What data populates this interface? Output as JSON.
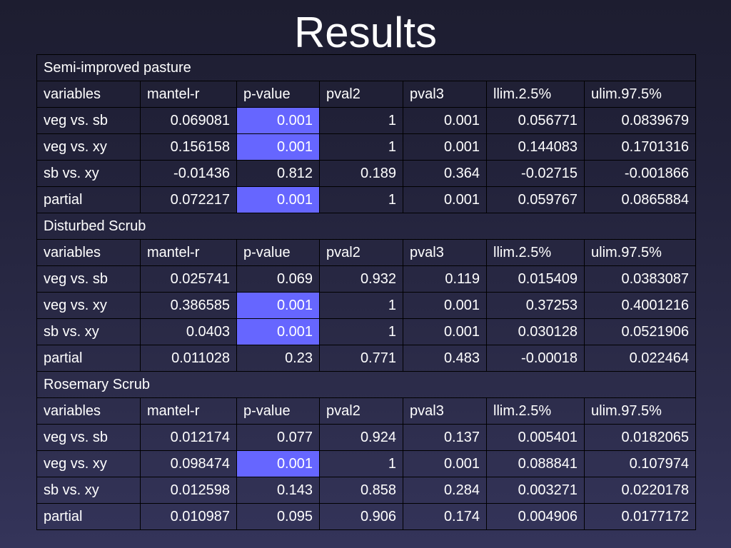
{
  "title": "Results",
  "columns": [
    "variables",
    "mantel-r",
    "p-value",
    "pval2",
    "pval3",
    "llim.2.5%",
    "ulim.97.5%"
  ],
  "colors": {
    "significant_highlight": "#6666ff",
    "background": "#22223a",
    "text": "#ffffff"
  },
  "sections": [
    {
      "name": "Semi-improved pasture",
      "rows": [
        {
          "cells": [
            "veg vs. sb",
            "0.069081",
            "0.001",
            "1",
            "0.001",
            "0.056771",
            "0.0839679"
          ],
          "highlight_pvalue": true
        },
        {
          "cells": [
            "veg vs. xy",
            "0.156158",
            "0.001",
            "1",
            "0.001",
            "0.144083",
            "0.1701316"
          ],
          "highlight_pvalue": true
        },
        {
          "cells": [
            "sb vs. xy",
            "-0.01436",
            "0.812",
            "0.189",
            "0.364",
            "-0.02715",
            "-0.001866"
          ],
          "highlight_pvalue": false
        },
        {
          "cells": [
            "partial",
            "0.072217",
            "0.001",
            "1",
            "0.001",
            "0.059767",
            "0.0865884"
          ],
          "highlight_pvalue": true
        }
      ]
    },
    {
      "name": "Disturbed Scrub",
      "rows": [
        {
          "cells": [
            "veg vs. sb",
            "0.025741",
            "0.069",
            "0.932",
            "0.119",
            "0.015409",
            "0.0383087"
          ],
          "highlight_pvalue": false
        },
        {
          "cells": [
            "veg vs. xy",
            "0.386585",
            "0.001",
            "1",
            "0.001",
            "0.37253",
            "0.4001216"
          ],
          "highlight_pvalue": true
        },
        {
          "cells": [
            "sb vs. xy",
            "0.0403",
            "0.001",
            "1",
            "0.001",
            "0.030128",
            "0.0521906"
          ],
          "highlight_pvalue": true
        },
        {
          "cells": [
            "partial",
            "0.011028",
            "0.23",
            "0.771",
            "0.483",
            "-0.00018",
            "0.022464"
          ],
          "highlight_pvalue": false
        }
      ]
    },
    {
      "name": "Rosemary Scrub",
      "rows": [
        {
          "cells": [
            "veg vs. sb",
            "0.012174",
            "0.077",
            "0.924",
            "0.137",
            "0.005401",
            "0.0182065"
          ],
          "highlight_pvalue": false
        },
        {
          "cells": [
            "veg vs. xy",
            "0.098474",
            "0.001",
            "1",
            "0.001",
            "0.088841",
            "0.107974"
          ],
          "highlight_pvalue": true
        },
        {
          "cells": [
            "sb vs. xy",
            "0.012598",
            "0.143",
            "0.858",
            "0.284",
            "0.003271",
            "0.0220178"
          ],
          "highlight_pvalue": false
        },
        {
          "cells": [
            "partial",
            "0.010987",
            "0.095",
            "0.906",
            "0.174",
            "0.004906",
            "0.0177172"
          ],
          "highlight_pvalue": false
        }
      ]
    }
  ]
}
